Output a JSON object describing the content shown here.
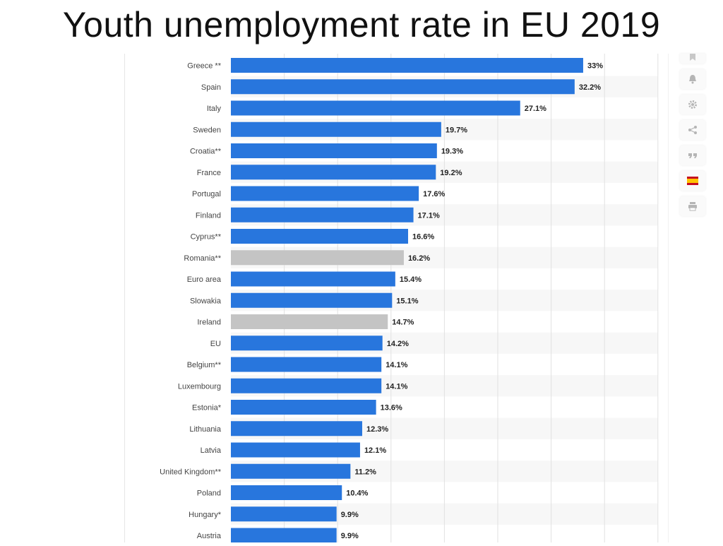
{
  "slide": {
    "title": "Youth unemployment rate in EU 2019"
  },
  "toolbar": {
    "buttons": [
      {
        "icon": "bookmark-icon"
      },
      {
        "icon": "bell-icon"
      },
      {
        "icon": "gear-icon"
      },
      {
        "icon": "share-icon"
      },
      {
        "icon": "quote-icon"
      },
      {
        "icon": "spain-flag-icon"
      },
      {
        "icon": "print-icon"
      }
    ]
  },
  "colors": {
    "primary_bar": "#2876dd",
    "highlight_bar": "#c4c4c4",
    "stripe": "#f7f7f7",
    "grid": "#e2e2e2"
  },
  "chart_data": {
    "type": "bar",
    "orientation": "horizontal",
    "xlim": [
      0,
      40
    ],
    "grid": true,
    "categories": [
      "Greece **",
      "Spain",
      "Italy",
      "Sweden",
      "Croatia**",
      "France",
      "Portugal",
      "Finland",
      "Cyprus**",
      "Romania**",
      "Euro area",
      "Slowakia",
      "Ireland",
      "EU",
      "Belgium**",
      "Luxembourg",
      "Estonia*",
      "Lithuania",
      "Latvia",
      "United Kingdom**",
      "Poland",
      "Hungary*",
      "Austria"
    ],
    "values": [
      33,
      32.2,
      27.1,
      19.7,
      19.3,
      19.2,
      17.6,
      17.1,
      16.6,
      16.2,
      15.4,
      15.1,
      14.7,
      14.2,
      14.1,
      14.1,
      13.6,
      12.3,
      12.1,
      11.2,
      10.4,
      9.9,
      9.9
    ],
    "value_labels": [
      "33%",
      "32.2%",
      "27.1%",
      "19.7%",
      "19.3%",
      "19.2%",
      "17.6%",
      "17.1%",
      "16.6%",
      "16.2%",
      "15.4%",
      "15.1%",
      "14.7%",
      "14.2%",
      "14.1%",
      "14.1%",
      "13.6%",
      "12.3%",
      "12.1%",
      "11.2%",
      "10.4%",
      "9.9%",
      "9.9%"
    ],
    "highlighted": [
      "Romania**",
      "Ireland"
    ]
  }
}
